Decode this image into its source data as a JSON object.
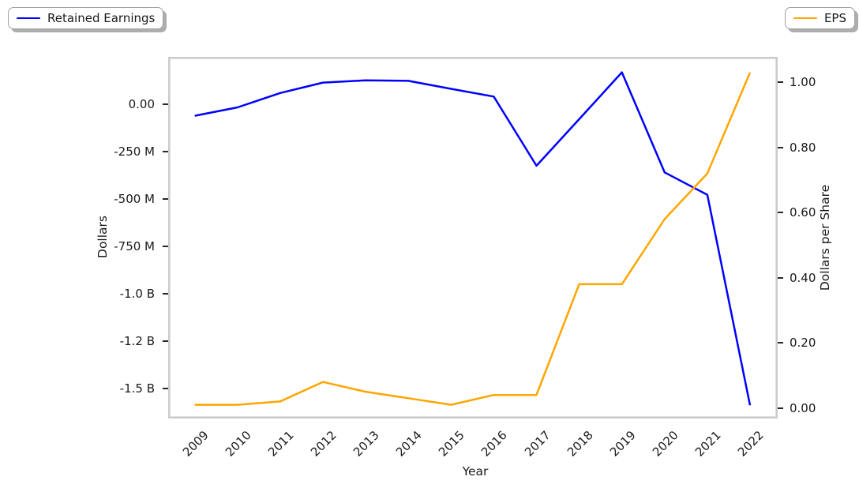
{
  "page": {
    "background": "#ffffff"
  },
  "legend": {
    "retained_earnings": {
      "label": "Retained Earnings",
      "color": "#0000ff"
    },
    "eps": {
      "label": "EPS",
      "color": "#ffa500"
    }
  },
  "chart_data": {
    "type": "line",
    "title": "",
    "xlabel": "Year",
    "grid": false,
    "categories": [
      "2009",
      "2010",
      "2011",
      "2012",
      "2013",
      "2014",
      "2015",
      "2016",
      "2017",
      "2018",
      "2019",
      "2020",
      "2021",
      "2022"
    ],
    "series": [
      {
        "name": "Retained Earnings",
        "axis": "left",
        "color": "#0000ff",
        "values_musd": [
          -62,
          -18,
          58,
          113,
          125,
          122,
          80,
          39,
          -326,
          -80,
          167,
          -361,
          -479,
          -1590
        ]
      },
      {
        "name": "EPS",
        "axis": "right",
        "color": "#ffa500",
        "values_usd_per_share": [
          0.01,
          0.01,
          0.02,
          0.08,
          0.05,
          0.03,
          0.01,
          0.04,
          0.04,
          0.38,
          0.38,
          0.58,
          0.72,
          1.03
        ]
      }
    ],
    "left_axis": {
      "label": "Dollars",
      "range_musd": [
        -1690,
        250
      ],
      "ticks": [
        {
          "label": "0.00",
          "value_musd": 0
        },
        {
          "label": "-250 M",
          "value_musd": -250
        },
        {
          "label": "-500 M",
          "value_musd": -500
        },
        {
          "label": "-750 M",
          "value_musd": -750
        },
        {
          "label": "-1.0 B",
          "value_musd": -1000
        },
        {
          "label": "-1.2 B",
          "value_musd": -1250
        },
        {
          "label": "-1.5 B",
          "value_musd": -1500
        }
      ]
    },
    "right_axis": {
      "label": "Dollars per Share",
      "range": [
        -0.03,
        1.07
      ],
      "ticks": [
        {
          "label": "0.00",
          "value": 0.0
        },
        {
          "label": "0.20",
          "value": 0.2
        },
        {
          "label": "0.40",
          "value": 0.4
        },
        {
          "label": "0.60",
          "value": 0.6
        },
        {
          "label": "0.80",
          "value": 0.8
        },
        {
          "label": "1.00",
          "value": 1.0
        }
      ]
    },
    "legend_position": "outside-top-left and outside-top-right"
  }
}
